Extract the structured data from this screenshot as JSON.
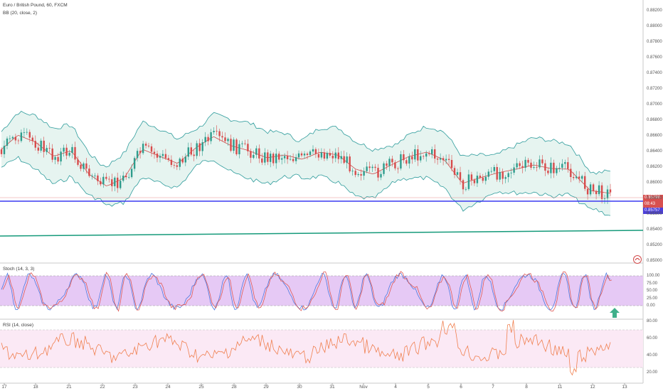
{
  "chart_title": "Euro / British Pound, 60, FXCM",
  "bb_title": "BB (20, close, 2)",
  "stoch_title": "Stoch (14, 3, 3)",
  "rsi_title": "RSI (14, close)",
  "price_axis": [
    "0.88200",
    "0.88000",
    "0.87800",
    "0.87600",
    "0.87400",
    "0.87200",
    "0.87000",
    "0.86800",
    "0.86600",
    "0.86400",
    "0.86200",
    "0.86000",
    "0.85800",
    "0.85600",
    "0.85400",
    "0.85200",
    "0.85000"
  ],
  "price_labels": {
    "last": "0.85798",
    "countdown": "08:43",
    "line": "0.85757"
  },
  "stoch_axis": [
    "100.00",
    "75.00",
    "50.00",
    "25.00",
    "0.00"
  ],
  "rsi_axis": [
    "80.00",
    "60.00",
    "40.00",
    "20.00"
  ],
  "time_axis": [
    "17",
    "18",
    "21",
    "22",
    "23",
    "24",
    "25",
    "28",
    "29",
    "30",
    "31",
    "Nov",
    "4",
    "5",
    "6",
    "7",
    "8",
    "11",
    "12",
    "13"
  ],
  "colors": {
    "band": "#2e9c9c",
    "band_fill": "#e6f4f0",
    "basis": "#d04a4a",
    "candle_up": "#2e9c8c",
    "candle_down": "#d74b4b",
    "hline": "#3a3af0",
    "trend": "#159a7a",
    "stoch_k": "#4e7ae0",
    "stoch_d": "#e05a55",
    "stoch_bg": "#e6c9f5",
    "rsi": "#f08050",
    "rsi_bg": "#fbe9f5",
    "arrow": "#3faf8a"
  },
  "icons": {
    "alert": "up-arrow-icon",
    "logo": "tradingview-badge-icon"
  }
}
